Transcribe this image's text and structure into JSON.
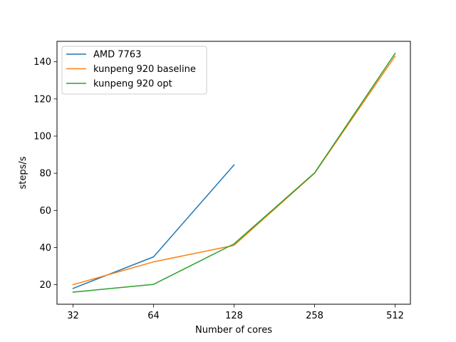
{
  "chart_data": {
    "type": "line",
    "title": "",
    "xlabel": "Number of cores",
    "ylabel": "steps/s",
    "categories": [
      "32",
      "64",
      "128",
      "258",
      "512"
    ],
    "yticks": [
      20,
      40,
      60,
      80,
      100,
      120,
      140
    ],
    "ylim": [
      9.5,
      151
    ],
    "grid": false,
    "legend_position": "top-left",
    "series": [
      {
        "name": "AMD 7763",
        "color": "#1f77b4",
        "values": [
          18.0,
          35.0,
          84.5,
          null,
          null
        ]
      },
      {
        "name": "kunpeng 920 baseline",
        "color": "#ff7f0e",
        "values": [
          20.0,
          32.3,
          41.2,
          80.0,
          143.0
        ]
      },
      {
        "name": "kunpeng 920 opt",
        "color": "#2ca02c",
        "values": [
          16.0,
          20.2,
          42.0,
          80.2,
          144.5
        ]
      }
    ]
  }
}
